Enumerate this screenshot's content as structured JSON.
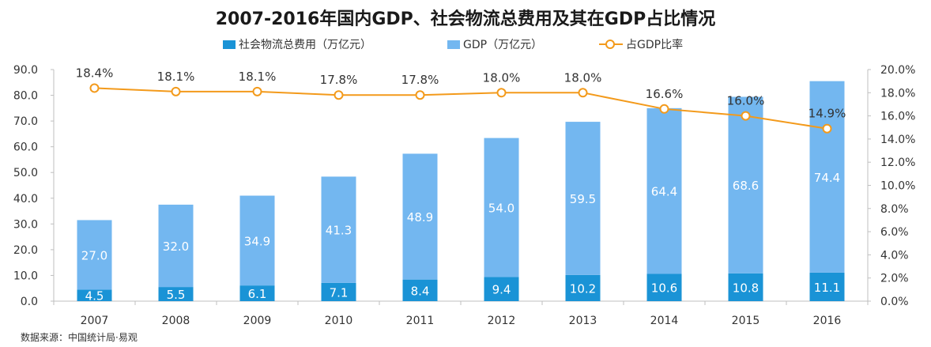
{
  "chart_data": {
    "type": "bar",
    "title": "2007-2016年国内GDP、社会物流总费用及其在GDP占比情况",
    "categories": [
      "2007",
      "2008",
      "2009",
      "2010",
      "2011",
      "2012",
      "2013",
      "2014",
      "2015",
      "2016"
    ],
    "series": [
      {
        "name": "社会物流总费用（万亿元）",
        "chart": "bar",
        "color": "#1a93d6",
        "values": [
          4.5,
          5.5,
          6.1,
          7.1,
          8.4,
          9.4,
          10.2,
          10.6,
          10.8,
          11.1
        ]
      },
      {
        "name": "GDP（万亿元）",
        "chart": "bar",
        "color": "#73b7f0",
        "values": [
          27.0,
          32.0,
          34.9,
          41.3,
          48.9,
          54.0,
          59.5,
          64.4,
          68.6,
          74.4
        ]
      },
      {
        "name": "占GDP比率",
        "chart": "line",
        "axis": "right",
        "color": "#f39a1b",
        "values": [
          18.4,
          18.1,
          18.1,
          17.8,
          17.8,
          18.0,
          18.0,
          16.6,
          16.0,
          14.9
        ],
        "labels": [
          "18.4%",
          "18.1%",
          "18.1%",
          "17.8%",
          "17.8%",
          "18.0%",
          "18.0%",
          "16.6%",
          "16.0%",
          "14.9%"
        ]
      }
    ],
    "stacked": true,
    "ylim": [
      0,
      90
    ],
    "y_ticks": [
      "0.0",
      "10.0",
      "20.0",
      "30.0",
      "40.0",
      "50.0",
      "60.0",
      "70.0",
      "80.0",
      "90.0"
    ],
    "y2lim": [
      0,
      20
    ],
    "y2_ticks": [
      "0.0%",
      "2.0%",
      "4.0%",
      "6.0%",
      "8.0%",
      "10.0%",
      "12.0%",
      "14.0%",
      "16.0%",
      "18.0%",
      "20.0%"
    ],
    "legend_position": "top",
    "grid": false
  },
  "source": "数据来源：中国统计局·易观"
}
